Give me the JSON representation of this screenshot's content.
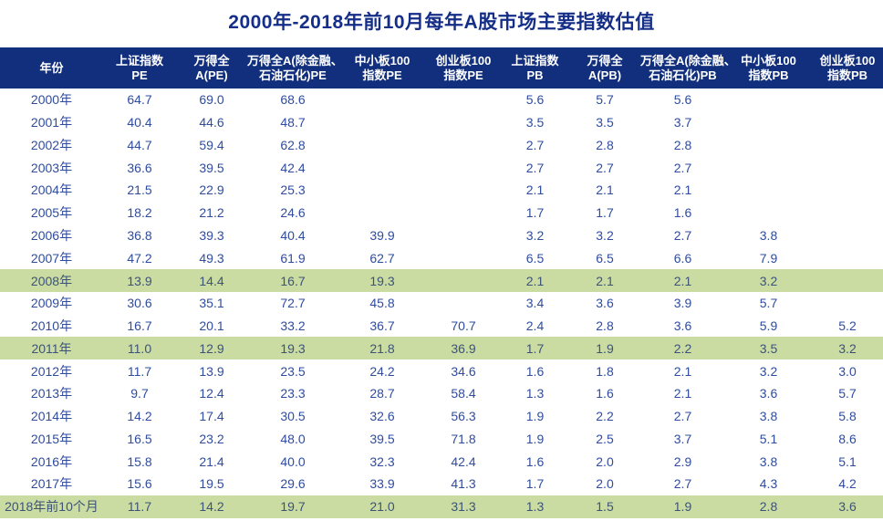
{
  "title": "2000年-2018年前10月每年A股市场主要指数估值",
  "colors": {
    "header_bg": "#112F7D",
    "title_text": "#152E87",
    "data_text": "#2F4C9E",
    "highlight_bg": "#CBDCA2",
    "highlight_text": "#3C5377"
  },
  "chart_data": {
    "type": "table",
    "title": "2000年-2018年前10月每年A股市场主要指数估值",
    "columns": [
      {
        "line1": "年份",
        "line2": ""
      },
      {
        "line1": "上证指数",
        "line2": "PE"
      },
      {
        "line1": "万得全",
        "line2": "A(PE)"
      },
      {
        "line1": "万得全A(除金融、",
        "line2": "石油石化)PE"
      },
      {
        "line1": "中小板100",
        "line2": "指数PE"
      },
      {
        "line1": "创业板100",
        "line2": "指数PE"
      },
      {
        "line1": "上证指数",
        "line2": "PB"
      },
      {
        "line1": "万得全",
        "line2": "A(PB)"
      },
      {
        "line1": "万得全A(除金融、",
        "line2": "石油石化)PB"
      },
      {
        "line1": "中小板100",
        "line2": "指数PB"
      },
      {
        "line1": "创业板100",
        "line2": "指数PB"
      }
    ],
    "rows": [
      {
        "year": "2000年",
        "highlight": false,
        "values": [
          "64.7",
          "69.0",
          "68.6",
          "",
          "",
          "5.6",
          "5.7",
          "5.6",
          "",
          ""
        ]
      },
      {
        "year": "2001年",
        "highlight": false,
        "values": [
          "40.4",
          "44.6",
          "48.7",
          "",
          "",
          "3.5",
          "3.5",
          "3.7",
          "",
          ""
        ]
      },
      {
        "year": "2002年",
        "highlight": false,
        "values": [
          "44.7",
          "59.4",
          "62.8",
          "",
          "",
          "2.7",
          "2.8",
          "2.8",
          "",
          ""
        ]
      },
      {
        "year": "2003年",
        "highlight": false,
        "values": [
          "36.6",
          "39.5",
          "42.4",
          "",
          "",
          "2.7",
          "2.7",
          "2.7",
          "",
          ""
        ]
      },
      {
        "year": "2004年",
        "highlight": false,
        "values": [
          "21.5",
          "22.9",
          "25.3",
          "",
          "",
          "2.1",
          "2.1",
          "2.1",
          "",
          ""
        ]
      },
      {
        "year": "2005年",
        "highlight": false,
        "values": [
          "18.2",
          "21.2",
          "24.6",
          "",
          "",
          "1.7",
          "1.7",
          "1.6",
          "",
          ""
        ]
      },
      {
        "year": "2006年",
        "highlight": false,
        "values": [
          "36.8",
          "39.3",
          "40.4",
          "39.9",
          "",
          "3.2",
          "3.2",
          "2.7",
          "3.8",
          ""
        ]
      },
      {
        "year": "2007年",
        "highlight": false,
        "values": [
          "47.2",
          "49.3",
          "61.9",
          "62.7",
          "",
          "6.5",
          "6.5",
          "6.6",
          "7.9",
          ""
        ]
      },
      {
        "year": "2008年",
        "highlight": true,
        "values": [
          "13.9",
          "14.4",
          "16.7",
          "19.3",
          "",
          "2.1",
          "2.1",
          "2.1",
          "3.2",
          ""
        ]
      },
      {
        "year": "2009年",
        "highlight": false,
        "values": [
          "30.6",
          "35.1",
          "72.7",
          "45.8",
          "",
          "3.4",
          "3.6",
          "3.9",
          "5.7",
          ""
        ]
      },
      {
        "year": "2010年",
        "highlight": false,
        "values": [
          "16.7",
          "20.1",
          "33.2",
          "36.7",
          "70.7",
          "2.4",
          "2.8",
          "3.6",
          "5.9",
          "5.2"
        ]
      },
      {
        "year": "2011年",
        "highlight": true,
        "values": [
          "11.0",
          "12.9",
          "19.3",
          "21.8",
          "36.9",
          "1.7",
          "1.9",
          "2.2",
          "3.5",
          "3.2"
        ]
      },
      {
        "year": "2012年",
        "highlight": false,
        "values": [
          "11.7",
          "13.9",
          "23.5",
          "24.2",
          "34.6",
          "1.6",
          "1.8",
          "2.1",
          "3.2",
          "3.0"
        ]
      },
      {
        "year": "2013年",
        "highlight": false,
        "values": [
          "9.7",
          "12.4",
          "23.3",
          "28.7",
          "58.4",
          "1.3",
          "1.6",
          "2.1",
          "3.6",
          "5.7"
        ]
      },
      {
        "year": "2014年",
        "highlight": false,
        "values": [
          "14.2",
          "17.4",
          "30.5",
          "32.6",
          "56.3",
          "1.9",
          "2.2",
          "2.7",
          "3.8",
          "5.8"
        ]
      },
      {
        "year": "2015年",
        "highlight": false,
        "values": [
          "16.5",
          "23.2",
          "48.0",
          "39.5",
          "71.8",
          "1.9",
          "2.5",
          "3.7",
          "5.1",
          "8.6"
        ]
      },
      {
        "year": "2016年",
        "highlight": false,
        "values": [
          "15.8",
          "21.4",
          "40.0",
          "32.3",
          "42.4",
          "1.6",
          "2.0",
          "2.9",
          "3.8",
          "5.1"
        ]
      },
      {
        "year": "2017年",
        "highlight": false,
        "values": [
          "15.6",
          "19.5",
          "29.6",
          "33.9",
          "41.3",
          "1.7",
          "2.0",
          "2.7",
          "4.3",
          "4.2"
        ]
      },
      {
        "year": "2018年前10个月",
        "highlight": true,
        "values": [
          "11.7",
          "14.2",
          "19.7",
          "21.0",
          "31.3",
          "1.3",
          "1.5",
          "1.9",
          "2.8",
          "3.6"
        ]
      }
    ]
  }
}
